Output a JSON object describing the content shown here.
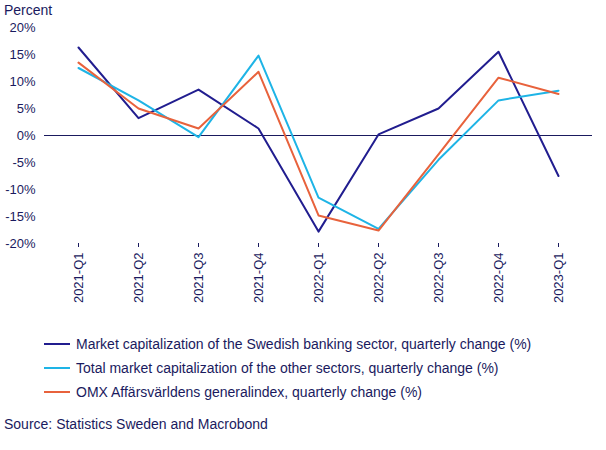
{
  "chart_data": {
    "type": "line",
    "ylabel": "Percent",
    "source": "Source: Statistics Sweden and Macrobond",
    "categories": [
      "2021-Q1",
      "2021-Q2",
      "2021-Q3",
      "2021-Q4",
      "2022-Q1",
      "2022-Q2",
      "2022-Q3",
      "2022-Q4",
      "2023-Q1"
    ],
    "series": [
      {
        "name": "Market capitalization of the Swedish banking sector, quarterly change (%)",
        "color": "#211d8f",
        "values": [
          16.3,
          3.2,
          8.5,
          1.3,
          -17.8,
          0.2,
          5.0,
          15.5,
          -7.5
        ]
      },
      {
        "name": "Total market capitalization of the other sectors, quarterly change (%)",
        "color": "#1eb4e6",
        "values": [
          12.5,
          6.5,
          -0.3,
          14.8,
          -11.5,
          -17.3,
          -4.5,
          6.5,
          8.3
        ]
      },
      {
        "name": "OMX Affärsvärldens generalindex, quarterly change (%)",
        "color": "#e8623c",
        "values": [
          13.5,
          5.0,
          1.3,
          11.8,
          -14.8,
          -17.6,
          -3.5,
          10.7,
          7.7
        ]
      }
    ],
    "ylim": [
      -20,
      20
    ],
    "yticks": [
      {
        "value": -20,
        "label": "-20%"
      },
      {
        "value": -15,
        "label": "-15%"
      },
      {
        "value": -10,
        "label": "-10%"
      },
      {
        "value": -5,
        "label": "-5%"
      },
      {
        "value": 0,
        "label": "0%"
      },
      {
        "value": 5,
        "label": "5%"
      },
      {
        "value": 10,
        "label": "10%"
      },
      {
        "value": 15,
        "label": "15%"
      },
      {
        "value": 20,
        "label": "20%"
      }
    ],
    "grid": false,
    "legend": "bottom"
  }
}
